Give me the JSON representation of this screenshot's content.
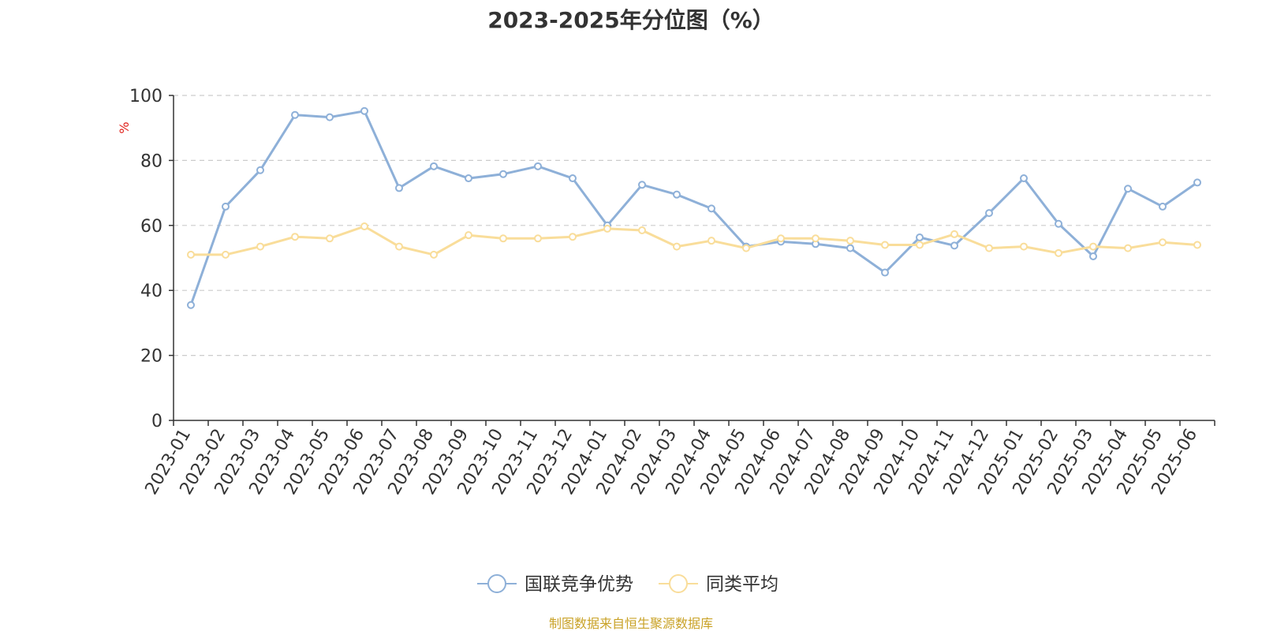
{
  "chart_data": {
    "type": "line",
    "title": "2023-2025年分位图（%）",
    "ylabel": "%",
    "ylim": [
      0,
      100
    ],
    "yticks": [
      0,
      20,
      40,
      60,
      80,
      100
    ],
    "grid": true,
    "legend_position": "bottom-center",
    "categories": [
      "2023-01",
      "2023-02",
      "2023-03",
      "2023-04",
      "2023-05",
      "2023-06",
      "2023-07",
      "2023-08",
      "2023-09",
      "2023-10",
      "2023-11",
      "2023-12",
      "2024-01",
      "2024-02",
      "2024-03",
      "2024-04",
      "2024-05",
      "2024-06",
      "2024-07",
      "2024-08",
      "2024-09",
      "2024-10",
      "2024-11",
      "2024-12",
      "2025-01",
      "2025-02",
      "2025-03",
      "2025-04",
      "2025-05",
      "2025-06"
    ],
    "series": [
      {
        "name": "国联竞争优势",
        "color": "#8eb0d8",
        "values": [
          35.5,
          65.8,
          77.0,
          94.0,
          93.3,
          95.2,
          71.5,
          78.2,
          74.5,
          75.8,
          78.2,
          74.5,
          60.0,
          72.5,
          69.5,
          65.2,
          53.5,
          55.0,
          54.3,
          53.0,
          45.5,
          56.3,
          53.8,
          63.8,
          74.5,
          60.5,
          50.5,
          71.3,
          65.8,
          73.2
        ]
      },
      {
        "name": "同类平均",
        "color": "#f9dd9a",
        "values": [
          51.0,
          51.0,
          53.5,
          56.5,
          56.0,
          59.7,
          53.5,
          51.0,
          57.0,
          56.0,
          56.0,
          56.5,
          59.0,
          58.5,
          53.5,
          55.3,
          53.0,
          56.0,
          56.0,
          55.3,
          54.0,
          54.0,
          57.3,
          53.0,
          53.5,
          51.5,
          53.5,
          53.0,
          54.8,
          54.0
        ]
      }
    ]
  },
  "footer": {
    "source": "制图数据来自恒生聚源数据库"
  }
}
